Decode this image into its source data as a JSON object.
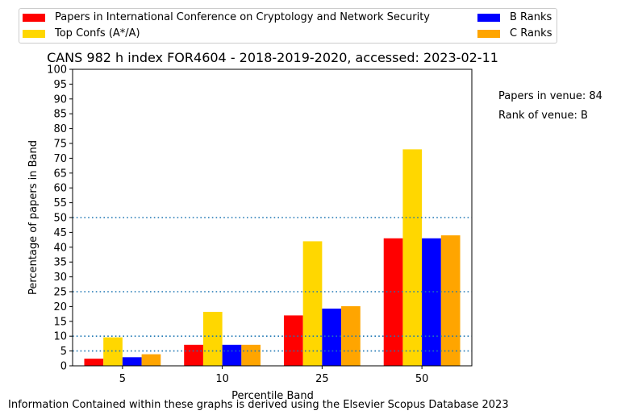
{
  "chart_data": {
    "type": "bar",
    "title": "CANS 982 h index FOR4604 - 2018-2019-2020, accessed: 2023-02-11",
    "xlabel": "Percentile Band",
    "ylabel": "Percentage of papers in Band",
    "categories": [
      "5",
      "10",
      "25",
      "50"
    ],
    "ylim": [
      0,
      100
    ],
    "yticks": [
      0,
      5,
      10,
      15,
      20,
      25,
      30,
      35,
      40,
      45,
      50,
      55,
      60,
      65,
      70,
      75,
      80,
      85,
      90,
      95,
      100
    ],
    "reference_lines": [
      5,
      10,
      25,
      50
    ],
    "grid": false,
    "legend_position": "top",
    "series": [
      {
        "name": "Papers in International Conference on Cryptology and Network Security",
        "color": "#ff0000",
        "values": [
          2.4,
          7.1,
          17,
          43
        ]
      },
      {
        "name": "Top Confs (A*/A)",
        "color": "#ffd700",
        "values": [
          9.6,
          18.2,
          42,
          73
        ]
      },
      {
        "name": "B Ranks",
        "color": "#0000ff",
        "values": [
          2.9,
          7.1,
          19.3,
          43
        ]
      },
      {
        "name": "C Ranks",
        "color": "#ffa500",
        "values": [
          3.9,
          7.1,
          20.1,
          44
        ]
      }
    ]
  },
  "side_notes": {
    "papers_in_venue": "Papers in venue: 84",
    "rank_of_venue": "Rank of venue: B"
  },
  "footer": "Information Contained within these graphs is derived using the Elsevier Scopus Database 2023"
}
